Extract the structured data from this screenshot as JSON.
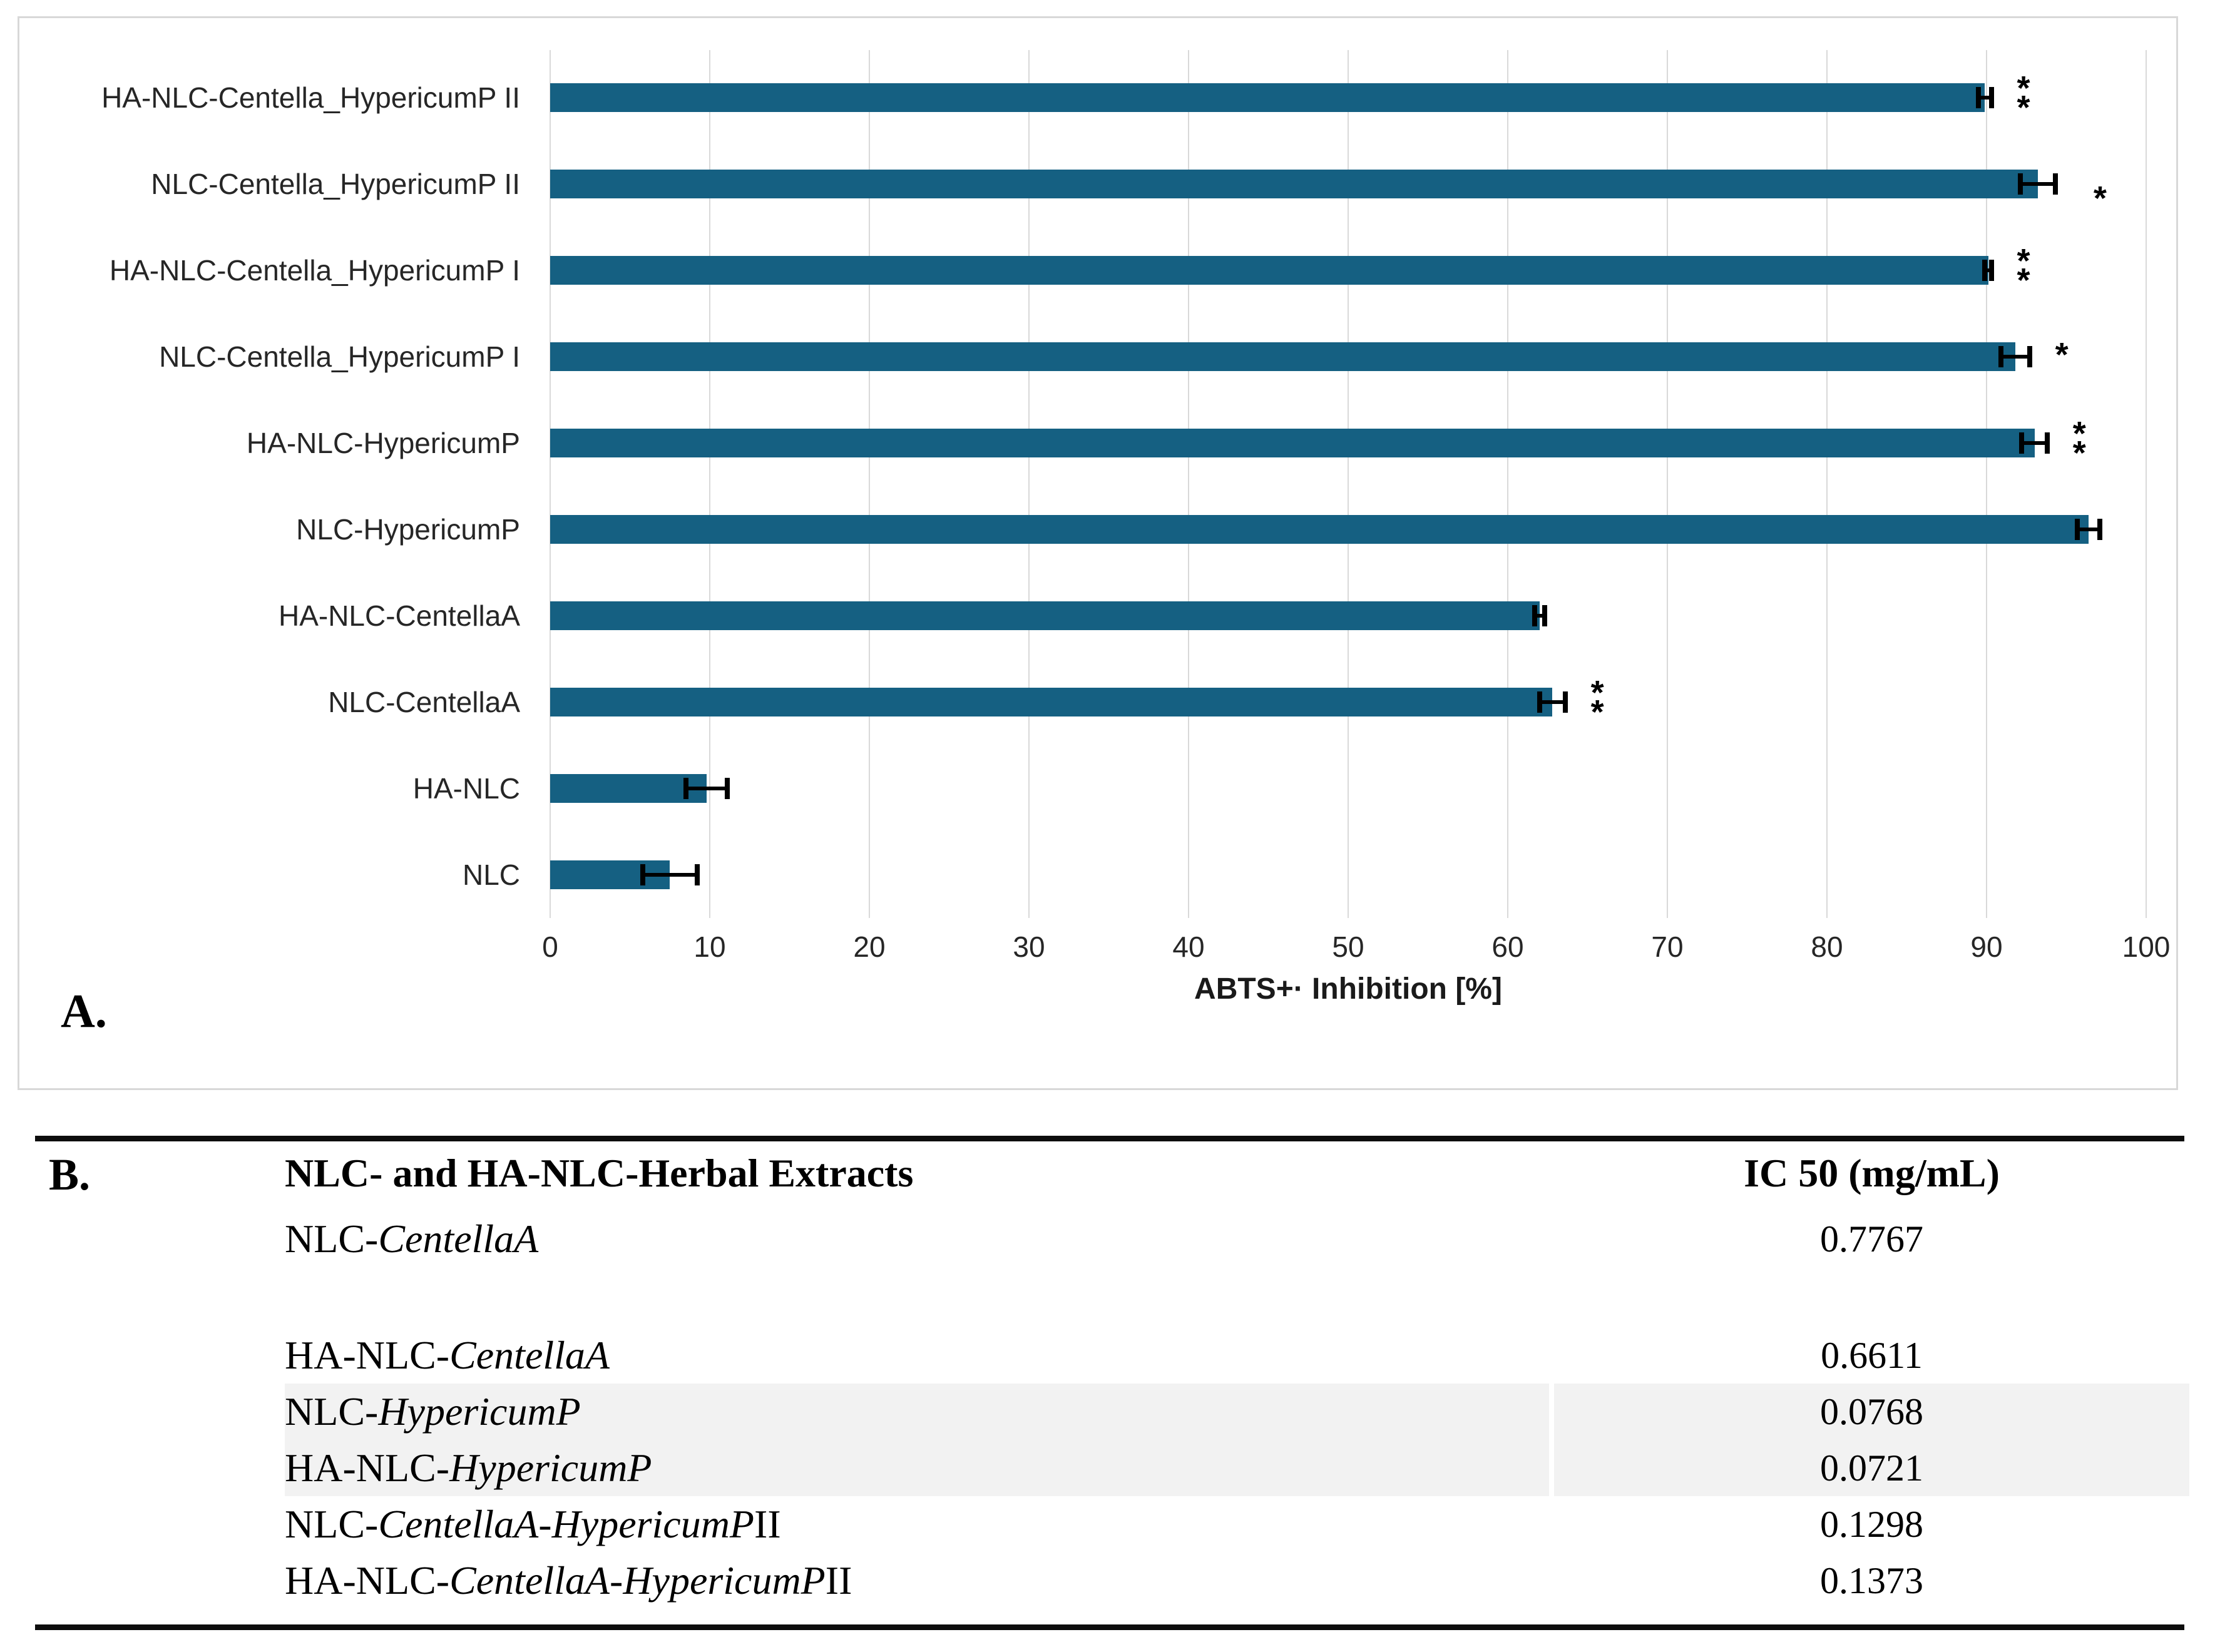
{
  "panel_a": {
    "label": "A.",
    "chart_data": {
      "type": "bar",
      "orientation": "horizontal",
      "title": "",
      "xlabel": "ABTS+· Inhibition [%]",
      "ylabel": "",
      "xlim": [
        0,
        100
      ],
      "xticks": [
        0,
        10,
        20,
        30,
        40,
        50,
        60,
        70,
        80,
        90,
        100
      ],
      "grid": true,
      "legend": false,
      "bar_color": "#156082",
      "grid_color": "#d9d9d9",
      "error_bar_color": "#000000",
      "categories": [
        "HA-NLC-Centella_HypericumP II",
        "NLC-Centella_HypericumP II",
        "HA-NLC-Centella_HypericumP I",
        "NLC-Centella_HypericumP I",
        "HA-NLC-HypericumP",
        "NLC-HypericumP",
        "HA-NLC-CentellaA",
        "NLC-CentellaA",
        "HA-NLC",
        "NLC"
      ],
      "values": [
        89.9,
        93.2,
        90.1,
        91.8,
        93.0,
        96.4,
        62.0,
        62.8,
        9.8,
        7.5
      ],
      "errors": [
        0.4,
        1.1,
        0.2,
        0.9,
        0.8,
        0.7,
        0.3,
        0.8,
        1.3,
        1.7
      ],
      "significance": [
        "**",
        "*",
        "**",
        "*",
        "**",
        "",
        "",
        "**",
        "",
        ""
      ]
    }
  },
  "panel_b": {
    "label": "B.",
    "table": {
      "col1_header": "NLC- and HA-NLC-Herbal Extracts",
      "col2_header": "IC 50 (mg/mL)",
      "rows": [
        {
          "prefix": "NLC-",
          "italic": "CentellaA",
          "suffix": "",
          "value": "0.7767",
          "shaded": false,
          "gap_after": true
        },
        {
          "prefix": "HA-NLC-",
          "italic": "CentellaA",
          "suffix": "",
          "value": "0.6611",
          "shaded": false,
          "gap_after": false
        },
        {
          "prefix": "NLC-",
          "italic": "HypericumP",
          "suffix": "",
          "value": "0.0768",
          "shaded": true,
          "gap_after": false
        },
        {
          "prefix": "HA-NLC-",
          "italic": "HypericumP",
          "suffix": "",
          "value": "0.0721",
          "shaded": true,
          "gap_after": false
        },
        {
          "prefix": "NLC-",
          "italic": "CentellaA-HypericumP",
          "suffix": " II",
          "value": "0.1298",
          "shaded": false,
          "gap_after": false
        },
        {
          "prefix": "HA-NLC-",
          "italic": "CentellaA-HypericumP",
          "suffix": " II",
          "value": "0.1373",
          "shaded": false,
          "gap_after": false
        }
      ],
      "row_shade_color": "#f2f2f2",
      "rule_color": "#0d0d0d",
      "panel_border_color": "#d8d8d8"
    }
  }
}
